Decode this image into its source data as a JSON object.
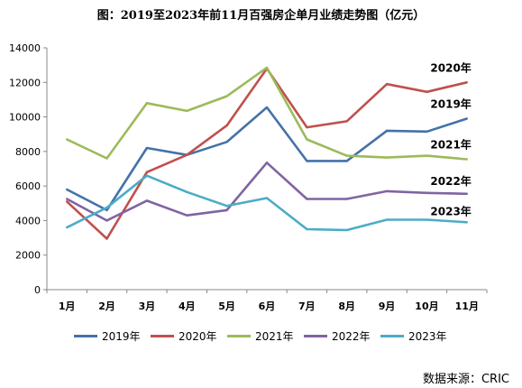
{
  "title": "图：2019至2023年前11月百强房企单月业绩走势图（亿元）",
  "source": "数据来源：CRIC",
  "chart_data": {
    "type": "line",
    "categories": [
      "1月",
      "2月",
      "3月",
      "4月",
      "5月",
      "6月",
      "7月",
      "8月",
      "9月",
      "10月",
      "11月"
    ],
    "ylim": [
      0,
      14000
    ],
    "yticks": [
      0,
      2000,
      4000,
      6000,
      8000,
      10000,
      12000,
      14000
    ],
    "grid": false,
    "legend_position": "bottom",
    "series": [
      {
        "name": "2019年",
        "color": "#4472a8",
        "values": [
          5800,
          4600,
          8200,
          7800,
          8550,
          10550,
          7450,
          7450,
          9200,
          9150,
          9900
        ]
      },
      {
        "name": "2020年",
        "color": "#c0504d",
        "values": [
          5100,
          2950,
          6800,
          7800,
          9500,
          12800,
          9400,
          9750,
          11900,
          11450,
          12000
        ]
      },
      {
        "name": "2021年",
        "color": "#9bbb59",
        "values": [
          8700,
          7600,
          10800,
          10350,
          11200,
          12850,
          8700,
          7750,
          7650,
          7750,
          7550
        ]
      },
      {
        "name": "2022年",
        "color": "#8064a2",
        "values": [
          5250,
          4000,
          5150,
          4300,
          4600,
          7350,
          5250,
          5250,
          5700,
          5600,
          5550
        ]
      },
      {
        "name": "2023年",
        "color": "#4bacc6",
        "values": [
          3600,
          4750,
          6600,
          5650,
          4850,
          5300,
          3500,
          3450,
          4050,
          4050,
          3900
        ]
      }
    ]
  }
}
